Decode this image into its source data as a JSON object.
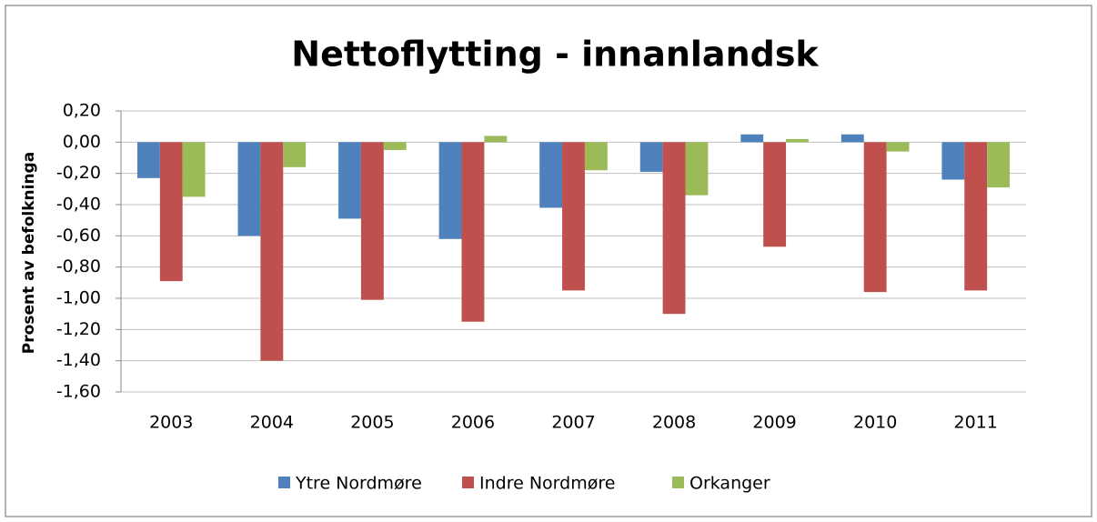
{
  "chart_data": {
    "type": "bar",
    "title": "Nettoflytting - innanlandsk",
    "ylabel": "Prosent av befolkninga",
    "categories": [
      "2003",
      "2004",
      "2005",
      "2006",
      "2007",
      "2008",
      "2009",
      "2010",
      "2011"
    ],
    "series": [
      {
        "name": "Ytre Nordmøre",
        "color": "#4f81bd",
        "values": [
          -0.23,
          -0.6,
          -0.49,
          -0.62,
          -0.42,
          -0.19,
          0.05,
          0.05,
          -0.24
        ]
      },
      {
        "name": "Indre Nordmøre",
        "color": "#c0504d",
        "values": [
          -0.89,
          -1.4,
          -1.01,
          -1.15,
          -0.95,
          -1.1,
          -0.67,
          -0.96,
          -0.95
        ]
      },
      {
        "name": "Orkanger",
        "color": "#9bbb59",
        "values": [
          -0.35,
          -0.16,
          -0.05,
          0.04,
          -0.18,
          -0.34,
          0.02,
          -0.06,
          -0.29
        ]
      }
    ],
    "ylim": [
      -1.6,
      0.2
    ],
    "yticks": [
      {
        "value": -1.6,
        "label": "-1,60"
      },
      {
        "value": -1.4,
        "label": "-1,40"
      },
      {
        "value": -1.2,
        "label": "-1,20"
      },
      {
        "value": -1.0,
        "label": "-1,00"
      },
      {
        "value": -0.8,
        "label": "-0,80"
      },
      {
        "value": -0.6,
        "label": "-0,60"
      },
      {
        "value": -0.4,
        "label": "-0,40"
      },
      {
        "value": -0.2,
        "label": "-0,20"
      },
      {
        "value": 0,
        "label": "0,00"
      },
      {
        "value": 0.2,
        "label": "0,20"
      }
    ],
    "grid": true,
    "legend": "bottom"
  }
}
